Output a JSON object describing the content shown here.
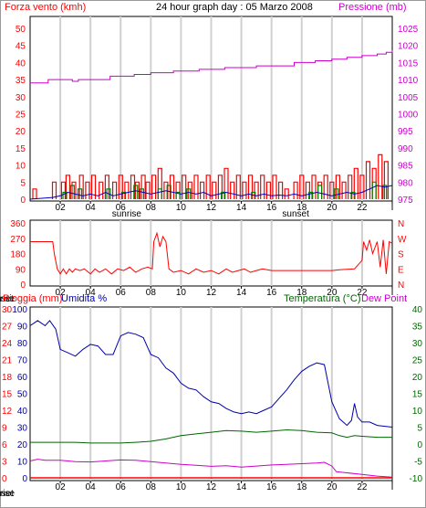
{
  "colors": {
    "wind": "#ff0000",
    "gust_green": "#008000",
    "avg_blue": "#0000c0",
    "pressure": "#cc00cc",
    "direction": "#ff0000",
    "humidity": "#0000aa",
    "temperature": "#006600",
    "dewpoint": "#cc00cc",
    "rain": "#ff0000",
    "grid": "#d0d0d0",
    "axis": "#000000"
  },
  "chart_data": [
    {
      "id": "wind_pressure",
      "type": "bar",
      "title": "24 hour graph day : 05 Marzo 2008",
      "left_label": "Forza vento (kmh)",
      "right_label": "Pressione (mb)",
      "left_ticks": [
        "0",
        "5",
        "10",
        "15",
        "20",
        "25",
        "30",
        "35",
        "40",
        "45",
        "50"
      ],
      "right_ticks": [
        "975",
        "980",
        "985",
        "990",
        "995",
        "1000",
        "1005",
        "1010",
        "1015",
        "1020",
        "1025"
      ],
      "ylim_left": [
        0,
        50
      ],
      "ylim_right": [
        975,
        1025
      ],
      "x_ticks": [
        "02",
        "04",
        "06",
        "08",
        "10",
        "12",
        "14",
        "16",
        "18",
        "20",
        "22",
        "I"
      ],
      "sunrise_label": "sunrise",
      "sunset_label": "sunset",
      "sunrise_hour": 6.4,
      "sunset_hour": 17.6,
      "pressure": [
        [
          0,
          1009
        ],
        [
          1.0,
          1009
        ],
        [
          1.2,
          1010
        ],
        [
          2.5,
          1010
        ],
        [
          2.8,
          1009.5
        ],
        [
          3.2,
          1010
        ],
        [
          5.0,
          1010
        ],
        [
          5.3,
          1011
        ],
        [
          6.6,
          1011
        ],
        [
          6.9,
          1011.5
        ],
        [
          8.0,
          1012
        ],
        [
          9.2,
          1012
        ],
        [
          9.5,
          1012.5
        ],
        [
          11.2,
          1013
        ],
        [
          12.6,
          1013
        ],
        [
          12.9,
          1013.5
        ],
        [
          15.0,
          1014
        ],
        [
          17.2,
          1014
        ],
        [
          17.5,
          1015
        ],
        [
          18.6,
          1015
        ],
        [
          18.9,
          1015.5
        ],
        [
          20.0,
          1016
        ],
        [
          21.0,
          1016.5
        ],
        [
          22.0,
          1017
        ],
        [
          23.0,
          1017.5
        ],
        [
          23.6,
          1018
        ],
        [
          24,
          1018.5
        ]
      ],
      "gust": [
        [
          0.3,
          3
        ],
        [
          1.6,
          5
        ],
        [
          2.2,
          5
        ],
        [
          2.5,
          7
        ],
        [
          2.9,
          5
        ],
        [
          3.4,
          7
        ],
        [
          3.8,
          5
        ],
        [
          4.2,
          7
        ],
        [
          4.7,
          5
        ],
        [
          5.1,
          7
        ],
        [
          5.6,
          5
        ],
        [
          6.0,
          7
        ],
        [
          6.4,
          5
        ],
        [
          6.8,
          7
        ],
        [
          7.1,
          5
        ],
        [
          7.5,
          7
        ],
        [
          7.8,
          5
        ],
        [
          8.2,
          7
        ],
        [
          8.6,
          9
        ],
        [
          9.0,
          5
        ],
        [
          9.4,
          7
        ],
        [
          9.8,
          5
        ],
        [
          10.2,
          7
        ],
        [
          10.6,
          5
        ],
        [
          11.0,
          7
        ],
        [
          11.4,
          5
        ],
        [
          11.8,
          7
        ],
        [
          12.2,
          5
        ],
        [
          12.6,
          7
        ],
        [
          13.0,
          9
        ],
        [
          13.4,
          5
        ],
        [
          13.8,
          7
        ],
        [
          14.2,
          5
        ],
        [
          14.6,
          7
        ],
        [
          15.0,
          5
        ],
        [
          15.4,
          7
        ],
        [
          15.8,
          5
        ],
        [
          16.2,
          7
        ],
        [
          16.6,
          5
        ],
        [
          17.0,
          3
        ],
        [
          17.6,
          5
        ],
        [
          18.0,
          7
        ],
        [
          18.4,
          5
        ],
        [
          18.8,
          7
        ],
        [
          19.2,
          5
        ],
        [
          19.6,
          7
        ],
        [
          20.0,
          5
        ],
        [
          20.4,
          7
        ],
        [
          20.8,
          5
        ],
        [
          21.2,
          7
        ],
        [
          21.6,
          9
        ],
        [
          22.0,
          7
        ],
        [
          22.4,
          11
        ],
        [
          22.8,
          9
        ],
        [
          23.2,
          13
        ],
        [
          23.6,
          11
        ]
      ],
      "wind_green": [
        [
          2.3,
          2
        ],
        [
          2.8,
          4
        ],
        [
          3.3,
          3
        ],
        [
          5.2,
          3
        ],
        [
          6.2,
          2
        ],
        [
          7.0,
          4
        ],
        [
          7.4,
          3
        ],
        [
          8.6,
          3
        ],
        [
          9.2,
          4
        ],
        [
          9.8,
          2
        ],
        [
          10.5,
          3
        ],
        [
          12.8,
          2
        ],
        [
          14.8,
          2
        ],
        [
          18.6,
          2
        ],
        [
          19.2,
          4
        ],
        [
          20.3,
          3
        ],
        [
          21.4,
          2
        ],
        [
          22.8,
          5
        ],
        [
          23.5,
          4
        ]
      ],
      "wind_avg": [
        [
          0,
          0
        ],
        [
          1.5,
          0.5
        ],
        [
          2.0,
          1
        ],
        [
          2.5,
          2
        ],
        [
          3.0,
          1.5
        ],
        [
          3.5,
          1
        ],
        [
          4.0,
          1.5
        ],
        [
          4.5,
          1
        ],
        [
          5.0,
          2
        ],
        [
          5.5,
          1
        ],
        [
          6.0,
          1.5
        ],
        [
          6.5,
          2
        ],
        [
          7.0,
          2.5
        ],
        [
          7.5,
          2
        ],
        [
          8.0,
          1.5
        ],
        [
          8.5,
          2
        ],
        [
          9.0,
          2.5
        ],
        [
          9.5,
          2
        ],
        [
          10.0,
          1.5
        ],
        [
          10.5,
          2
        ],
        [
          11.0,
          1.5
        ],
        [
          11.5,
          2
        ],
        [
          12.0,
          1
        ],
        [
          12.5,
          1.5
        ],
        [
          13.0,
          2
        ],
        [
          13.5,
          1.5
        ],
        [
          14.0,
          1
        ],
        [
          14.5,
          1.5
        ],
        [
          15.0,
          1
        ],
        [
          15.5,
          1.5
        ],
        [
          16.0,
          1
        ],
        [
          16.5,
          1.2
        ],
        [
          17.0,
          1
        ],
        [
          17.5,
          1.5
        ],
        [
          18.0,
          1
        ],
        [
          18.5,
          1.5
        ],
        [
          19.0,
          2
        ],
        [
          19.5,
          1.5
        ],
        [
          20.0,
          1
        ],
        [
          20.5,
          1.5
        ],
        [
          21.0,
          2
        ],
        [
          21.5,
          1.5
        ],
        [
          22.0,
          2
        ],
        [
          22.5,
          3
        ],
        [
          23.0,
          4
        ],
        [
          23.5,
          3.5
        ],
        [
          24,
          4
        ]
      ]
    },
    {
      "id": "wind_direction",
      "type": "line",
      "left_ticks": [
        "0",
        "90",
        "180",
        "270",
        "360"
      ],
      "right_ticks": [
        "N",
        "E",
        "S",
        "W",
        "N"
      ],
      "ylim": [
        0,
        360
      ],
      "x_ticks": [
        "02",
        "04",
        "06",
        "08",
        "10",
        "12",
        "14",
        "16",
        "18",
        "20",
        "22",
        "I"
      ],
      "sunrise_label": "sunrise",
      "sunset_label": "sunset",
      "direction": [
        [
          0,
          250
        ],
        [
          1.5,
          250
        ],
        [
          1.6,
          180
        ],
        [
          1.8,
          90
        ],
        [
          2.0,
          60
        ],
        [
          2.2,
          90
        ],
        [
          2.4,
          60
        ],
        [
          2.6,
          90
        ],
        [
          2.8,
          70
        ],
        [
          3.0,
          90
        ],
        [
          3.3,
          80
        ],
        [
          3.6,
          90
        ],
        [
          4.0,
          60
        ],
        [
          4.3,
          90
        ],
        [
          4.6,
          70
        ],
        [
          5.0,
          90
        ],
        [
          5.4,
          60
        ],
        [
          5.8,
          90
        ],
        [
          6.2,
          80
        ],
        [
          6.6,
          100
        ],
        [
          7.0,
          70
        ],
        [
          7.4,
          90
        ],
        [
          7.8,
          100
        ],
        [
          8.1,
          90
        ],
        [
          8.2,
          250
        ],
        [
          8.4,
          300
        ],
        [
          8.6,
          220
        ],
        [
          8.8,
          280
        ],
        [
          9.0,
          250
        ],
        [
          9.2,
          90
        ],
        [
          9.5,
          70
        ],
        [
          10.0,
          80
        ],
        [
          10.5,
          60
        ],
        [
          11.0,
          90
        ],
        [
          11.5,
          70
        ],
        [
          12.0,
          80
        ],
        [
          12.5,
          60
        ],
        [
          13.0,
          90
        ],
        [
          13.4,
          70
        ],
        [
          13.8,
          80
        ],
        [
          14.2,
          90
        ],
        [
          14.6,
          70
        ],
        [
          15.0,
          80
        ],
        [
          15.4,
          90
        ],
        [
          16.0,
          80
        ],
        [
          17.5,
          80
        ],
        [
          19.0,
          80
        ],
        [
          20.0,
          80
        ],
        [
          20.5,
          85
        ],
        [
          21.5,
          90
        ],
        [
          22.0,
          140
        ],
        [
          22.1,
          250
        ],
        [
          22.3,
          200
        ],
        [
          22.5,
          260
        ],
        [
          22.7,
          180
        ],
        [
          23.0,
          250
        ],
        [
          23.2,
          100
        ],
        [
          23.4,
          260
        ],
        [
          23.6,
          60
        ],
        [
          23.8,
          250
        ],
        [
          24,
          240
        ]
      ]
    },
    {
      "id": "humidity_temp_rain",
      "type": "line",
      "left_label_rain": "Pioggia (mm)",
      "left_label_hum": "Umidita %",
      "right_label_temp": "Temperatura (°C)",
      "right_label_dew": "Dew Point",
      "rain_ticks": [
        "0",
        "3",
        "6",
        "9",
        "12",
        "15",
        "18",
        "21",
        "24",
        "27",
        "30"
      ],
      "humidity_ticks": [
        "0",
        "10",
        "20",
        "30",
        "40",
        "50",
        "60",
        "70",
        "80",
        "90",
        "100"
      ],
      "temp_ticks": [
        "-10",
        "-5",
        "0",
        "5",
        "10",
        "15",
        "20",
        "25",
        "30",
        "35",
        "40"
      ],
      "ylim_humidity": [
        0,
        100
      ],
      "ylim_temp": [
        -10,
        40
      ],
      "x_ticks": [
        "02",
        "04",
        "06",
        "08",
        "10",
        "12",
        "14",
        "16",
        "18",
        "20",
        "22",
        "I"
      ],
      "sunrise_label": "sunrise",
      "sunset_label": "sunset",
      "humidity": [
        [
          0,
          90
        ],
        [
          0.5,
          93
        ],
        [
          1.0,
          90
        ],
        [
          1.3,
          93
        ],
        [
          1.7,
          88
        ],
        [
          2.0,
          76
        ],
        [
          2.5,
          74
        ],
        [
          3.0,
          72
        ],
        [
          3.5,
          76
        ],
        [
          4.0,
          79
        ],
        [
          4.5,
          78
        ],
        [
          5.0,
          73
        ],
        [
          5.5,
          73
        ],
        [
          6.0,
          84
        ],
        [
          6.5,
          86
        ],
        [
          7.0,
          85
        ],
        [
          7.5,
          83
        ],
        [
          8.0,
          73
        ],
        [
          8.5,
          71
        ],
        [
          9.0,
          65
        ],
        [
          9.5,
          62
        ],
        [
          10.0,
          56
        ],
        [
          10.5,
          53
        ],
        [
          11.0,
          52
        ],
        [
          11.5,
          48
        ],
        [
          12.0,
          45
        ],
        [
          12.5,
          44
        ],
        [
          13.0,
          41
        ],
        [
          13.5,
          39
        ],
        [
          14.0,
          38
        ],
        [
          14.5,
          39
        ],
        [
          15.0,
          38
        ],
        [
          15.5,
          40
        ],
        [
          16.0,
          42
        ],
        [
          16.5,
          47
        ],
        [
          17.0,
          52
        ],
        [
          17.5,
          58
        ],
        [
          18.0,
          63
        ],
        [
          18.5,
          66
        ],
        [
          19.0,
          68
        ],
        [
          19.5,
          67
        ],
        [
          20.0,
          45
        ],
        [
          20.5,
          35
        ],
        [
          21.0,
          31
        ],
        [
          21.3,
          34
        ],
        [
          21.5,
          44
        ],
        [
          21.7,
          36
        ],
        [
          22.0,
          33
        ],
        [
          22.5,
          33
        ],
        [
          23.0,
          31
        ],
        [
          24,
          30
        ]
      ],
      "temperature": [
        [
          0,
          0.5
        ],
        [
          1.0,
          0.5
        ],
        [
          2.0,
          0.5
        ],
        [
          3.0,
          0.5
        ],
        [
          4.0,
          0.3
        ],
        [
          5.0,
          0.3
        ],
        [
          6.0,
          0.3
        ],
        [
          7.0,
          0.5
        ],
        [
          8.0,
          0.8
        ],
        [
          9.0,
          1.5
        ],
        [
          10.0,
          2.5
        ],
        [
          11.0,
          3.0
        ],
        [
          12.0,
          3.5
        ],
        [
          13.0,
          4.0
        ],
        [
          14.0,
          3.8
        ],
        [
          15.0,
          3.5
        ],
        [
          16.0,
          3.8
        ],
        [
          17.0,
          4.2
        ],
        [
          18.0,
          4.0
        ],
        [
          19.0,
          3.5
        ],
        [
          20.0,
          3.3
        ],
        [
          20.5,
          2.5
        ],
        [
          21.0,
          2.0
        ],
        [
          21.5,
          2.5
        ],
        [
          22.0,
          2.3
        ],
        [
          23.0,
          2.0
        ],
        [
          24,
          2.0
        ]
      ],
      "dewpoint": [
        [
          0,
          -5
        ],
        [
          0.5,
          -4.5
        ],
        [
          1.0,
          -4.8
        ],
        [
          2.0,
          -4.8
        ],
        [
          3.0,
          -5.2
        ],
        [
          4.0,
          -5.3
        ],
        [
          5.0,
          -5.0
        ],
        [
          6.0,
          -4.7
        ],
        [
          7.0,
          -4.8
        ],
        [
          8.0,
          -5.2
        ],
        [
          9.0,
          -5.6
        ],
        [
          10.0,
          -6.0
        ],
        [
          11.0,
          -6.3
        ],
        [
          12.0,
          -6.6
        ],
        [
          13.0,
          -6.4
        ],
        [
          14.0,
          -6.8
        ],
        [
          15.0,
          -6.5
        ],
        [
          16.0,
          -6.2
        ],
        [
          17.0,
          -6.0
        ],
        [
          18.0,
          -5.8
        ],
        [
          19.0,
          -5.6
        ],
        [
          19.5,
          -5.4
        ],
        [
          20.0,
          -6.5
        ],
        [
          20.3,
          -8.2
        ],
        [
          21.0,
          -8.5
        ],
        [
          22.0,
          -9.0
        ],
        [
          23.0,
          -9.5
        ],
        [
          24,
          -9.8
        ]
      ],
      "rain": [
        [
          0,
          0
        ],
        [
          24,
          0
        ]
      ]
    }
  ]
}
